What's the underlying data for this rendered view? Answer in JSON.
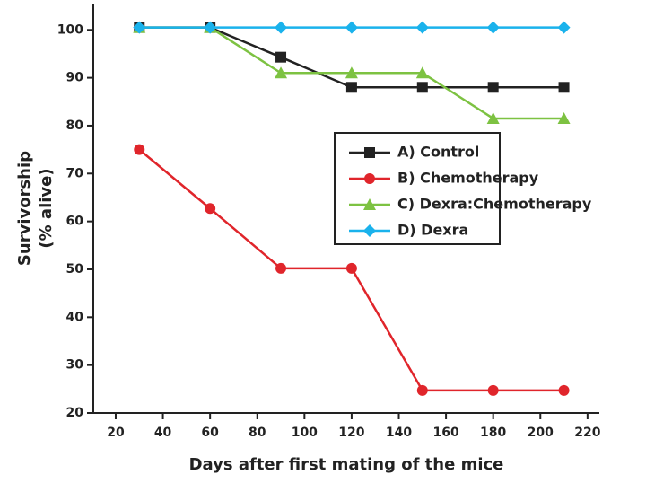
{
  "chart_data": {
    "type": "line",
    "xlabel": "Days after first mating of the mice",
    "ylabel": [
      "Survivorship",
      "(% alive)"
    ],
    "x": [
      30,
      60,
      90,
      120,
      150,
      180,
      210
    ],
    "series": [
      {
        "name": "A) Control",
        "color": "#222222",
        "marker": "square",
        "values": [
          100.5,
          100.5,
          94.3,
          88,
          88,
          88,
          88
        ]
      },
      {
        "name": "B) Chemotherapy",
        "color": "#e0252b",
        "marker": "circle",
        "values": [
          75,
          62.7,
          50.2,
          50.2,
          24.7,
          24.7,
          24.7
        ]
      },
      {
        "name": "C) Dexra:Chemotherapy",
        "color": "#7dc242",
        "marker": "triangle",
        "values": [
          100.5,
          100.5,
          91,
          91,
          91,
          81.5,
          81.5
        ]
      },
      {
        "name": "D) Dexra",
        "color": "#1ab2ec",
        "marker": "diamond",
        "values": [
          100.5,
          100.5,
          100.5,
          100.5,
          100.5,
          100.5,
          100.5
        ]
      }
    ],
    "xlim": [
      10.5,
      225
    ],
    "ylim": [
      20,
      105.3
    ],
    "xticks": [
      20,
      40,
      60,
      80,
      100,
      120,
      140,
      160,
      180,
      200,
      220
    ],
    "yticks": [
      20,
      30,
      40,
      50,
      60,
      70,
      80,
      90,
      100
    ],
    "legend": "center right"
  }
}
